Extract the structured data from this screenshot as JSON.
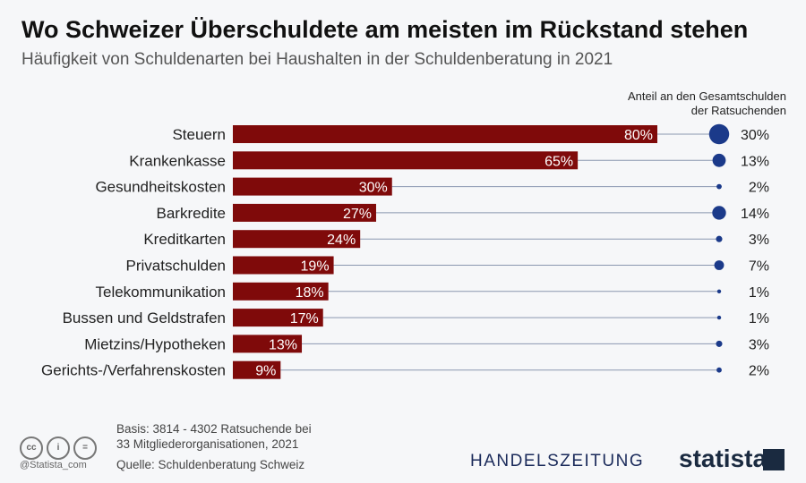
{
  "title": "Wo Schweizer Überschuldete am meisten im Rückstand stehen",
  "subtitle": "Häufigkeit von Schuldenarten bei Haushalten in der Schuldenberatung in 2021",
  "right_header": [
    "Anteil an den Gesamtschulden",
    "der Ratsuchenden"
  ],
  "chart_data": {
    "type": "bar",
    "orientation": "horizontal",
    "categories": [
      "Steuern",
      "Krankenkasse",
      "Gesundheitskosten",
      "Barkredite",
      "Kreditkarten",
      "Privatschulden",
      "Telekommunikation",
      "Bussen und Geldstrafen",
      "Mietzins/Hypotheken",
      "Gerichts-/Verfahrenskosten"
    ],
    "series": [
      {
        "values": [
          80,
          65,
          30,
          27,
          24,
          19,
          18,
          17,
          13,
          9
        ],
        "labels": [
          "80%",
          "65%",
          "30%",
          "27%",
          "24%",
          "19%",
          "18%",
          "17%",
          "13%",
          "9%"
        ],
        "color": "#7f0a0a"
      },
      {
        "name": "Anteil an den Gesamtschulden der Ratsuchenden",
        "type": "bubble",
        "values": [
          30,
          13,
          2,
          14,
          3,
          7,
          1,
          1,
          3,
          2
        ],
        "labels": [
          "30%",
          "13%",
          "2%",
          "14%",
          "3%",
          "7%",
          "1%",
          "1%",
          "3%",
          "2%"
        ],
        "color": "#1b3a8a"
      }
    ]
  },
  "footer": {
    "basis": "Basis: 3814 - 4302 Ratsuchende bei",
    "basis2": "33 Mitgliederorganisationen, 2021",
    "source": "Quelle: Schuldenberatung Schweiz",
    "handle": "@Statista_com",
    "cc": [
      "cc",
      "i",
      "="
    ]
  },
  "logos": {
    "handelszeitung": "HANDELSZEITUNG",
    "statista": "statista"
  }
}
